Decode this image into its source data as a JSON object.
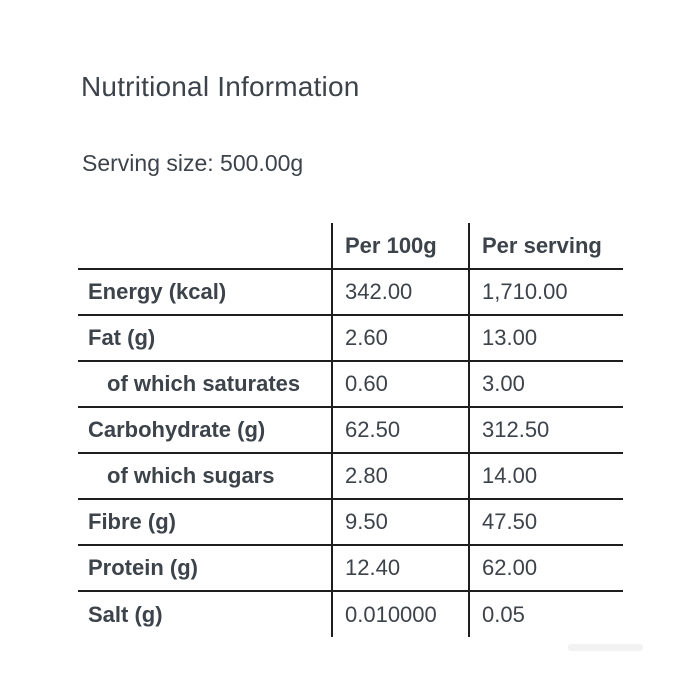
{
  "page": {
    "title": "Nutritional Information",
    "serving_size": "Serving size: 500.00g"
  },
  "table": {
    "columns": [
      "",
      "Per 100g",
      "Per serving"
    ],
    "rows": [
      {
        "label": "Energy (kcal)",
        "per_100g": "342.00",
        "per_serving": "1,710.00",
        "indent": false
      },
      {
        "label": "Fat (g)",
        "per_100g": "2.60",
        "per_serving": "13.00",
        "indent": false
      },
      {
        "label": "of which saturates",
        "per_100g": "0.60",
        "per_serving": "3.00",
        "indent": true
      },
      {
        "label": "Carbohydrate (g)",
        "per_100g": "62.50",
        "per_serving": "312.50",
        "indent": false
      },
      {
        "label": "of which sugars",
        "per_100g": "2.80",
        "per_serving": "14.00",
        "indent": true
      },
      {
        "label": "Fibre (g)",
        "per_100g": "9.50",
        "per_serving": "47.50",
        "indent": false
      },
      {
        "label": "Protein (g)",
        "per_100g": "12.40",
        "per_serving": "62.00",
        "indent": false
      },
      {
        "label": "Salt (g)",
        "per_100g": "0.010000",
        "per_serving": "0.05",
        "indent": false
      }
    ]
  },
  "colors": {
    "text": "#3d434a",
    "line": "#1e1e1e",
    "background": "#ffffff",
    "scrollbar": "#f2f2f2"
  }
}
